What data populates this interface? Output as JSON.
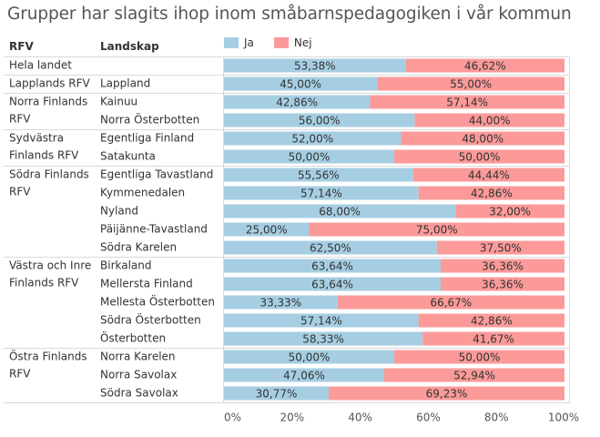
{
  "title": "Grupper har slagits ihop inom småbarnspedagogiken i vår kommun",
  "headers": {
    "rfv": "RFV",
    "landskap": "Landskap"
  },
  "legend": [
    {
      "name": "Ja",
      "color": "#a6cee3"
    },
    {
      "name": "Nej",
      "color": "#fb9a99"
    }
  ],
  "chart_data": {
    "type": "bar",
    "orientation": "horizontal",
    "stacked": true,
    "normalized": true,
    "x_ticks": [
      "0%",
      "20%",
      "40%",
      "60%",
      "80%",
      "100%"
    ],
    "xlim": [
      0,
      100
    ],
    "series": [
      {
        "name": "Ja",
        "color": "#a6cee3"
      },
      {
        "name": "Nej",
        "color": "#fb9a99"
      }
    ],
    "groups": [
      {
        "rfv": [
          "Hela landet"
        ],
        "rows": [
          {
            "landskap": "",
            "ja": 53.38,
            "nej": 46.62,
            "ja_label": "53,38%",
            "nej_label": "46,62%"
          }
        ]
      },
      {
        "rfv": [
          "Lapplands RFV"
        ],
        "rows": [
          {
            "landskap": "Lappland",
            "ja": 45.0,
            "nej": 55.0,
            "ja_label": "45,00%",
            "nej_label": "55,00%"
          }
        ]
      },
      {
        "rfv": [
          "Norra Finlands",
          "RFV"
        ],
        "rows": [
          {
            "landskap": "Kainuu",
            "ja": 42.86,
            "nej": 57.14,
            "ja_label": "42,86%",
            "nej_label": "57,14%"
          },
          {
            "landskap": "Norra Österbotten",
            "ja": 56.0,
            "nej": 44.0,
            "ja_label": "56,00%",
            "nej_label": "44,00%"
          }
        ]
      },
      {
        "rfv": [
          "Sydvästra",
          "Finlands RFV"
        ],
        "rows": [
          {
            "landskap": "Egentliga Finland",
            "ja": 52.0,
            "nej": 48.0,
            "ja_label": "52,00%",
            "nej_label": "48,00%"
          },
          {
            "landskap": "Satakunta",
            "ja": 50.0,
            "nej": 50.0,
            "ja_label": "50,00%",
            "nej_label": "50,00%"
          }
        ]
      },
      {
        "rfv": [
          "Södra Finlands",
          "RFV"
        ],
        "rows": [
          {
            "landskap": "Egentliga Tavastland",
            "ja": 55.56,
            "nej": 44.44,
            "ja_label": "55,56%",
            "nej_label": "44,44%"
          },
          {
            "landskap": "Kymmenedalen",
            "ja": 57.14,
            "nej": 42.86,
            "ja_label": "57,14%",
            "nej_label": "42,86%"
          },
          {
            "landskap": "Nyland",
            "ja": 68.0,
            "nej": 32.0,
            "ja_label": "68,00%",
            "nej_label": "32,00%"
          },
          {
            "landskap": "Päijänne-Tavastland",
            "ja": 25.0,
            "nej": 75.0,
            "ja_label": "25,00%",
            "nej_label": "75,00%"
          },
          {
            "landskap": "Södra Karelen",
            "ja": 62.5,
            "nej": 37.5,
            "ja_label": "62,50%",
            "nej_label": "37,50%"
          }
        ]
      },
      {
        "rfv": [
          "Västra och Inre",
          "Finlands RFV"
        ],
        "rows": [
          {
            "landskap": "Birkaland",
            "ja": 63.64,
            "nej": 36.36,
            "ja_label": "63,64%",
            "nej_label": "36,36%"
          },
          {
            "landskap": "Mellersta Finland",
            "ja": 63.64,
            "nej": 36.36,
            "ja_label": "63,64%",
            "nej_label": "36,36%"
          },
          {
            "landskap": "Mellesta Österbotten",
            "ja": 33.33,
            "nej": 66.67,
            "ja_label": "33,33%",
            "nej_label": "66,67%"
          },
          {
            "landskap": "Södra Österbotten",
            "ja": 57.14,
            "nej": 42.86,
            "ja_label": "57,14%",
            "nej_label": "42,86%"
          },
          {
            "landskap": "Österbotten",
            "ja": 58.33,
            "nej": 41.67,
            "ja_label": "58,33%",
            "nej_label": "41,67%"
          }
        ]
      },
      {
        "rfv": [
          "Östra Finlands",
          "RFV"
        ],
        "rows": [
          {
            "landskap": "Norra Karelen",
            "ja": 50.0,
            "nej": 50.0,
            "ja_label": "50,00%",
            "nej_label": "50,00%"
          },
          {
            "landskap": "Norra Savolax",
            "ja": 47.06,
            "nej": 52.94,
            "ja_label": "47,06%",
            "nej_label": "52,94%"
          },
          {
            "landskap": "Södra Savolax",
            "ja": 30.77,
            "nej": 69.23,
            "ja_label": "30,77%",
            "nej_label": "69,23%"
          }
        ]
      }
    ]
  }
}
